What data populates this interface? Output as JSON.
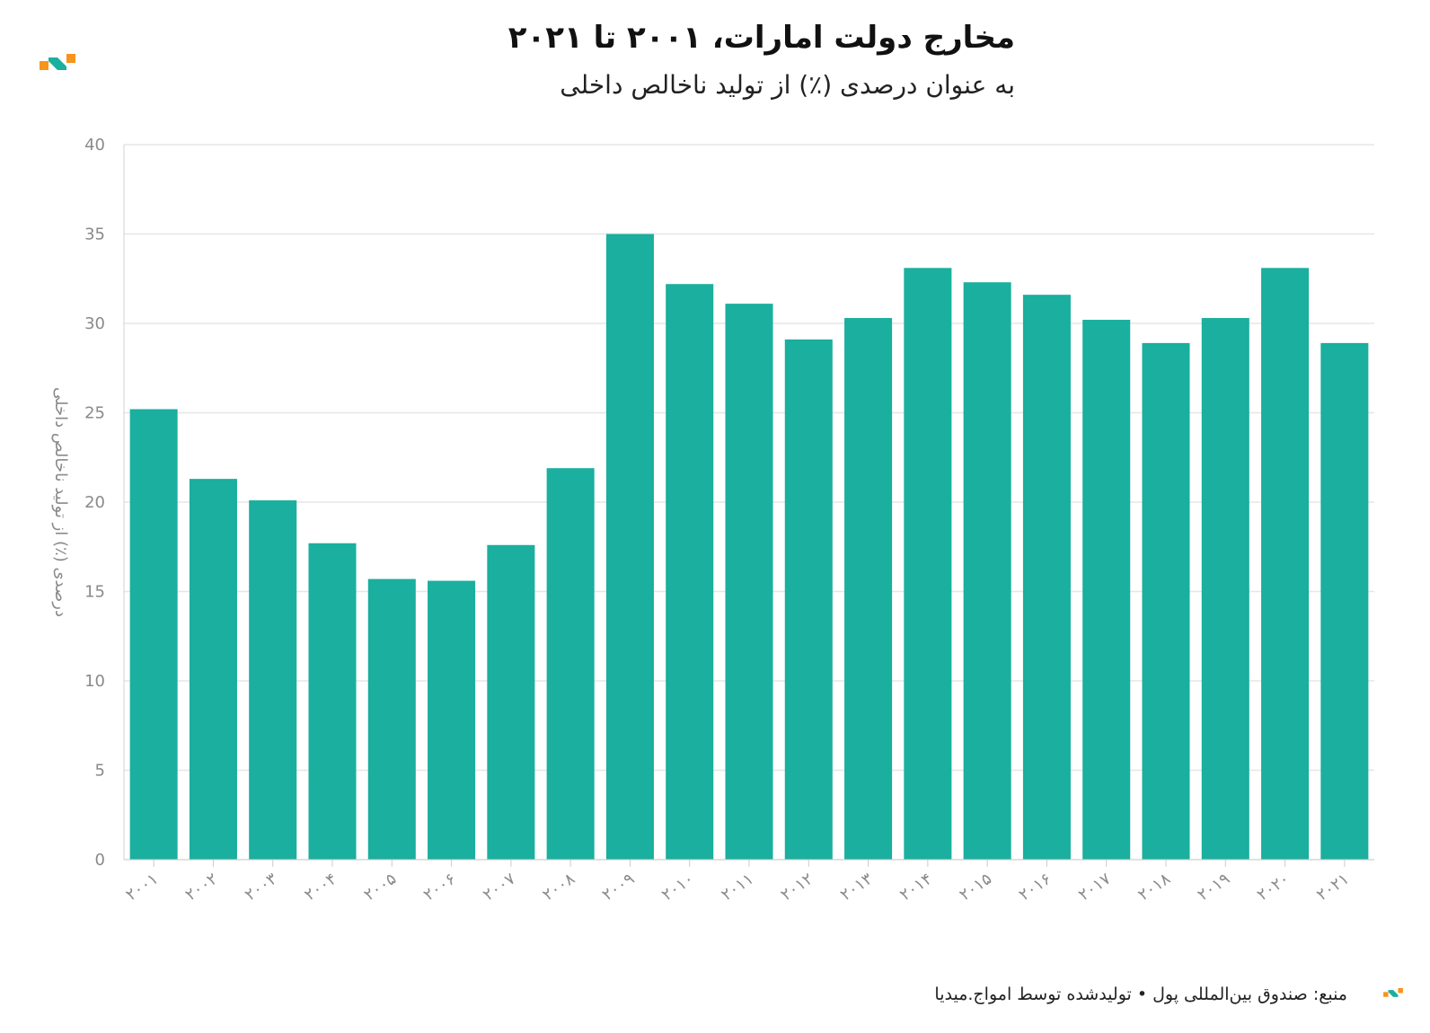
{
  "header": {
    "title": "مخارج دولت امارات، ۲۰۰۱ تا ۲۰۲۱",
    "subtitle": "به عنوان درصدی (٪) از تولید ناخالص داخلی"
  },
  "footer": {
    "source_text": "منبع: صندوق بین‌المللی پول • تولیدشده توسط امواج.میدیا"
  },
  "colors": {
    "bar": "#1aaf9e",
    "logo_orange": "#f7941d",
    "logo_teal": "#1aaf9e"
  },
  "chart_data": {
    "type": "bar",
    "ylabel": "درصدی (٪) از تولید ناخالص داخلی",
    "ylim": [
      0,
      40
    ],
    "yticks": [
      0,
      5,
      10,
      15,
      20,
      25,
      30,
      35,
      40
    ],
    "grid": true,
    "categories": [
      "۲۰۰۱",
      "۲۰۰۲",
      "۲۰۰۳",
      "۲۰۰۴",
      "۲۰۰۵",
      "۲۰۰۶",
      "۲۰۰۷",
      "۲۰۰۸",
      "۲۰۰۹",
      "۲۰۱۰",
      "۲۰۱۱",
      "۲۰۱۲",
      "۲۰۱۳",
      "۲۰۱۴",
      "۲۰۱۵",
      "۲۰۱۶",
      "۲۰۱۷",
      "۲۰۱۸",
      "۲۰۱۹",
      "۲۰۲۰",
      "۲۰۲۱"
    ],
    "values": [
      25.2,
      21.3,
      20.1,
      17.7,
      15.7,
      15.6,
      17.6,
      21.9,
      35.0,
      32.2,
      31.1,
      29.1,
      30.3,
      33.1,
      32.3,
      31.6,
      30.2,
      28.9,
      30.3,
      33.1,
      28.9
    ]
  }
}
